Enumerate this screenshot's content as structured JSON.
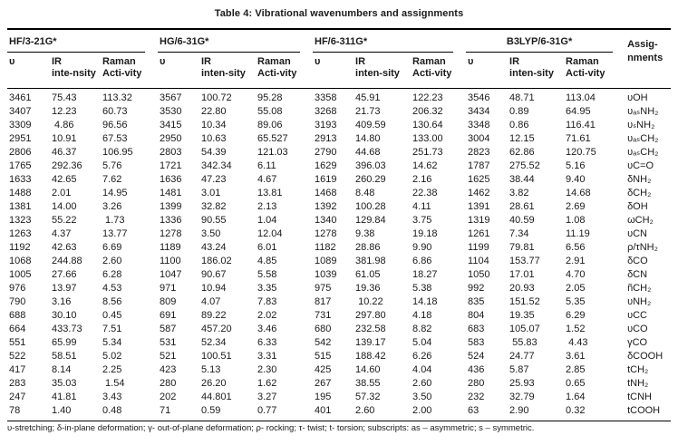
{
  "title": "Table 4: Vibrational wavenumbers and assignments",
  "colors": {
    "text": "#1a1a1a",
    "rule": "#000000",
    "background": "#ffffff"
  },
  "table": {
    "groups": [
      {
        "label": "HF/3-21G*",
        "freq": "υ",
        "ir": "IR\ninte-nsity",
        "raman": "Raman\nActi-vity"
      },
      {
        "label": "HG/6-31G*",
        "freq": "υ",
        "ir": "IR\ninten-sity",
        "raman": "Raman\nActi-vity"
      },
      {
        "label": "HF/6-311G*",
        "freq": "υ",
        "ir": "IR\ninten-sity",
        "raman": "Raman\nActi-vity"
      },
      {
        "label": "B3LYP/6-31G*",
        "freq": "υ",
        "ir": "IR\ninten-sity",
        "raman": "Raman\nActi-vity"
      }
    ],
    "assignments_header": "Assig-\nnments",
    "rows": [
      [
        "3461",
        "75.43",
        "113.32",
        "3567",
        "100.72",
        "95.28",
        "3358",
        "45.91",
        "122.23",
        "3546",
        "48.71",
        "113.04",
        "υOH"
      ],
      [
        "3407",
        "12.23",
        "60.73",
        "3530",
        "22.80",
        "55.08",
        "3268",
        "21.73",
        "206.32",
        "3434",
        "0.89",
        "64.95",
        "υₐₛNH₂"
      ],
      [
        "3309",
        " 4.86",
        "96.56",
        "3415",
        "10.34",
        "89.06",
        "3193",
        "409.59",
        "130.64",
        "3348",
        "0.86",
        "116.41",
        "υₛNH₂"
      ],
      [
        "2951",
        "10.91",
        "67.53",
        "2950",
        "10.63",
        "65.527",
        "2913",
        "14.80",
        "133.00",
        "3004",
        "12.15",
        "71.61",
        "υₐₛCH₂"
      ],
      [
        "2806",
        "46.37",
        "106.95",
        "2803",
        "54.39",
        "121.03",
        "2790",
        "44.68",
        "251.73",
        "2823",
        "62.86",
        "120.75",
        "υₐₛCH₂"
      ],
      [
        "1765",
        "292.36",
        "5.76",
        "1721",
        "342.34",
        "6.11",
        "1629",
        "396.03",
        "14.62",
        "1787",
        "275.52",
        "5.16",
        "υC=O"
      ],
      [
        "1633",
        "42.65",
        "7.62",
        "1636",
        "47.23",
        "4.67",
        "1619",
        "260.29",
        "2.16",
        "1625",
        "38.44",
        "9.40",
        "δNH₂"
      ],
      [
        "1488",
        "2.01",
        "14.95",
        "1481",
        "3.01",
        "13.81",
        "1468",
        "8.48",
        "22.38",
        "1462",
        "3.82",
        "14.68",
        "δCH₂"
      ],
      [
        "1381",
        "14.00",
        "3.26",
        "1399",
        "32.82",
        "2.13",
        "1392",
        "100.28",
        "4.11",
        "1391",
        "28.61",
        "2.69",
        "δOH"
      ],
      [
        "1323",
        "55.22",
        " 1.73",
        "1336",
        "90.55",
        "1.04",
        "1340",
        "129.84",
        "3.75",
        "1319",
        "40.59",
        "1.08",
        "ωCH₂"
      ],
      [
        "1263",
        "4.37",
        "13.77",
        "1278",
        "3.50",
        "12.04",
        "1278",
        "9.38",
        "19.18",
        "1261",
        "7.34",
        "11.19",
        "υCN"
      ],
      [
        "1192",
        "42.63",
        "6.69",
        "1189",
        "43.24",
        "6.01",
        "1182",
        "28.86",
        "9.90",
        "1199",
        "79.81",
        "6.56",
        "ρ/τNH₂"
      ],
      [
        "1068",
        "244.88",
        "2.60",
        "1100",
        "186.02",
        "4.85",
        "1089",
        "381.98",
        "6.86",
        "1104",
        "153.77",
        "2.91",
        "δCO"
      ],
      [
        "1005",
        "27.66",
        "6.28",
        "1047",
        "90.67",
        "5.58",
        "1039",
        "61.05",
        "18.27",
        "1050",
        "17.01",
        "4.70",
        "δCN"
      ],
      [
        "976",
        "13.97",
        "4.53",
        "971",
        "10.94",
        "3.35",
        "975",
        "19.36",
        "5.38",
        "992",
        "20.93",
        "2.05",
        "ñCH₂"
      ],
      [
        "790",
        "3.16",
        "8.56",
        "809",
        "4.07",
        "7.83",
        "817",
        " 10.22",
        "14.18",
        "835",
        "151.52",
        "5.35",
        "υNH₂"
      ],
      [
        "688",
        "30.10",
        "0.45",
        "691",
        "89.22",
        "2.02",
        "731",
        "297.80",
        "4.18",
        "804",
        "19.35",
        "6.29",
        "υCC"
      ],
      [
        "664",
        "433.73",
        "7.51",
        "587",
        "457.20",
        "3.46",
        "680",
        "232.58",
        "8.82",
        "683",
        "105.07",
        "1.52",
        "υCO"
      ],
      [
        "551",
        "65.99",
        "5.34",
        "531",
        "52.34",
        "6.33",
        "542",
        "139.17",
        "5.04",
        "583",
        " 55.83",
        " 4.43",
        "γCO"
      ],
      [
        "522",
        "58.51",
        "5.02",
        "521",
        "100.51",
        "3.31",
        "515",
        "188.42",
        "6.26",
        "524",
        "24.77",
        "3.61",
        "δCOOH"
      ],
      [
        "417",
        "8.14",
        "2.25",
        "423",
        "5.13",
        "2.30",
        "425",
        "14.60",
        "4.04",
        "436",
        "5.87",
        "2.85",
        "tCH₂"
      ],
      [
        "283",
        "35.03",
        " 1.54",
        "280",
        "26.20",
        "1.62",
        "267",
        "38.55",
        "2.60",
        "280",
        "25.93",
        "0.65",
        "tNH₂"
      ],
      [
        "247",
        "41.81",
        "3.43",
        "202",
        "44.801",
        "3.27",
        "195",
        "57.32",
        "3.50",
        "232",
        "32.79",
        "1.64",
        "tCNH"
      ],
      [
        "78",
        "1.40",
        "0.48",
        "71",
        "0.59",
        "0.77",
        "401",
        "2.60",
        "2.00",
        "63",
        "2.90",
        "0.32",
        "tCOOH"
      ]
    ]
  },
  "footnote": "υ-stretching; δ-in-plane deformation; γ- out-of-plane deformation; ρ- rocking; τ- twist; t- torsion; subscripts: as – asymmetric; s – symmetric."
}
